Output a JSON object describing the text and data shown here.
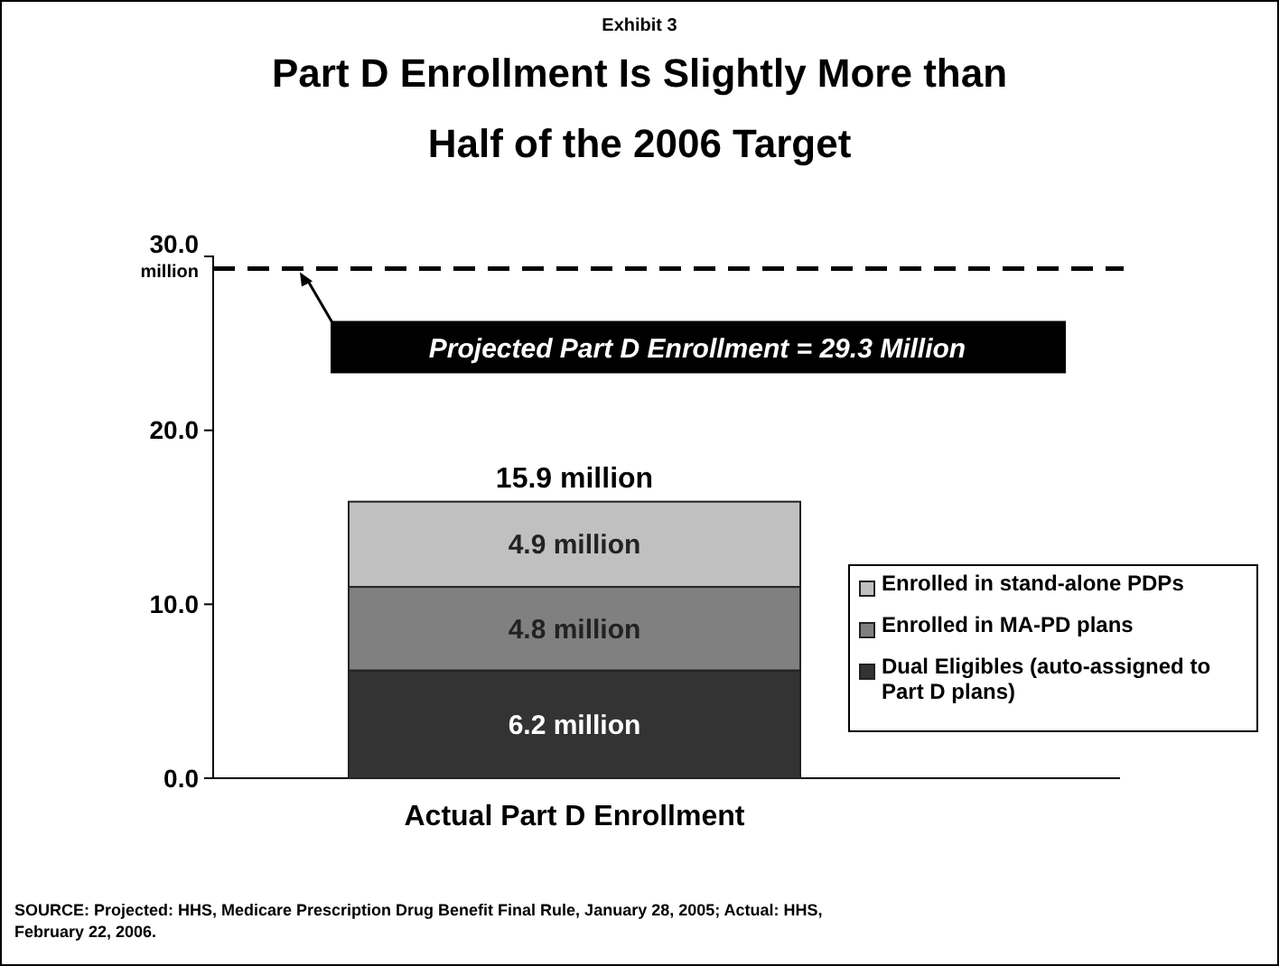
{
  "chart_data": {
    "type": "bar",
    "stacked": true,
    "title": "Part D Enrollment Is Slightly More than Half of the 2006 Target",
    "annotations": [
      "Exhibit 3",
      "SOURCE: Projected: HHS, Medicare Prescription Drug Benefit Final Rule, January 28, 2005; Actual: HHS, February 22, 2006."
    ],
    "categories": [
      "Actual Part D Enrollment"
    ],
    "series": [
      {
        "name": "Dual Eligibles (auto-assigned to Part D plans)",
        "color": "#333333",
        "values": [
          6.2
        ],
        "value_labels": [
          "6.2 million"
        ]
      },
      {
        "name": "Enrolled in MA-PD plans",
        "color": "#808080",
        "values": [
          4.8
        ],
        "value_labels": [
          "4.8 million"
        ]
      },
      {
        "name": "Enrolled in stand-alone PDPs",
        "color": "#c0c0c0",
        "values": [
          4.9
        ],
        "value_labels": [
          "4.9 million"
        ]
      }
    ],
    "totals": [
      "15.9 million"
    ],
    "ylim": [
      0,
      30
    ],
    "yticks": [
      {
        "value": 0,
        "label": "0.0"
      },
      {
        "value": 10,
        "label": "10.0"
      },
      {
        "value": 20,
        "label": "20.0"
      },
      {
        "value": 30,
        "label": "30.0 million"
      }
    ],
    "ref_lines": [
      {
        "axis": "y",
        "value": 29.3,
        "label": "Projected Part D Enrollment = 29.3 Million",
        "color": "#000000",
        "line_style": "dashed"
      }
    ],
    "legend": "right",
    "grid": false
  }
}
